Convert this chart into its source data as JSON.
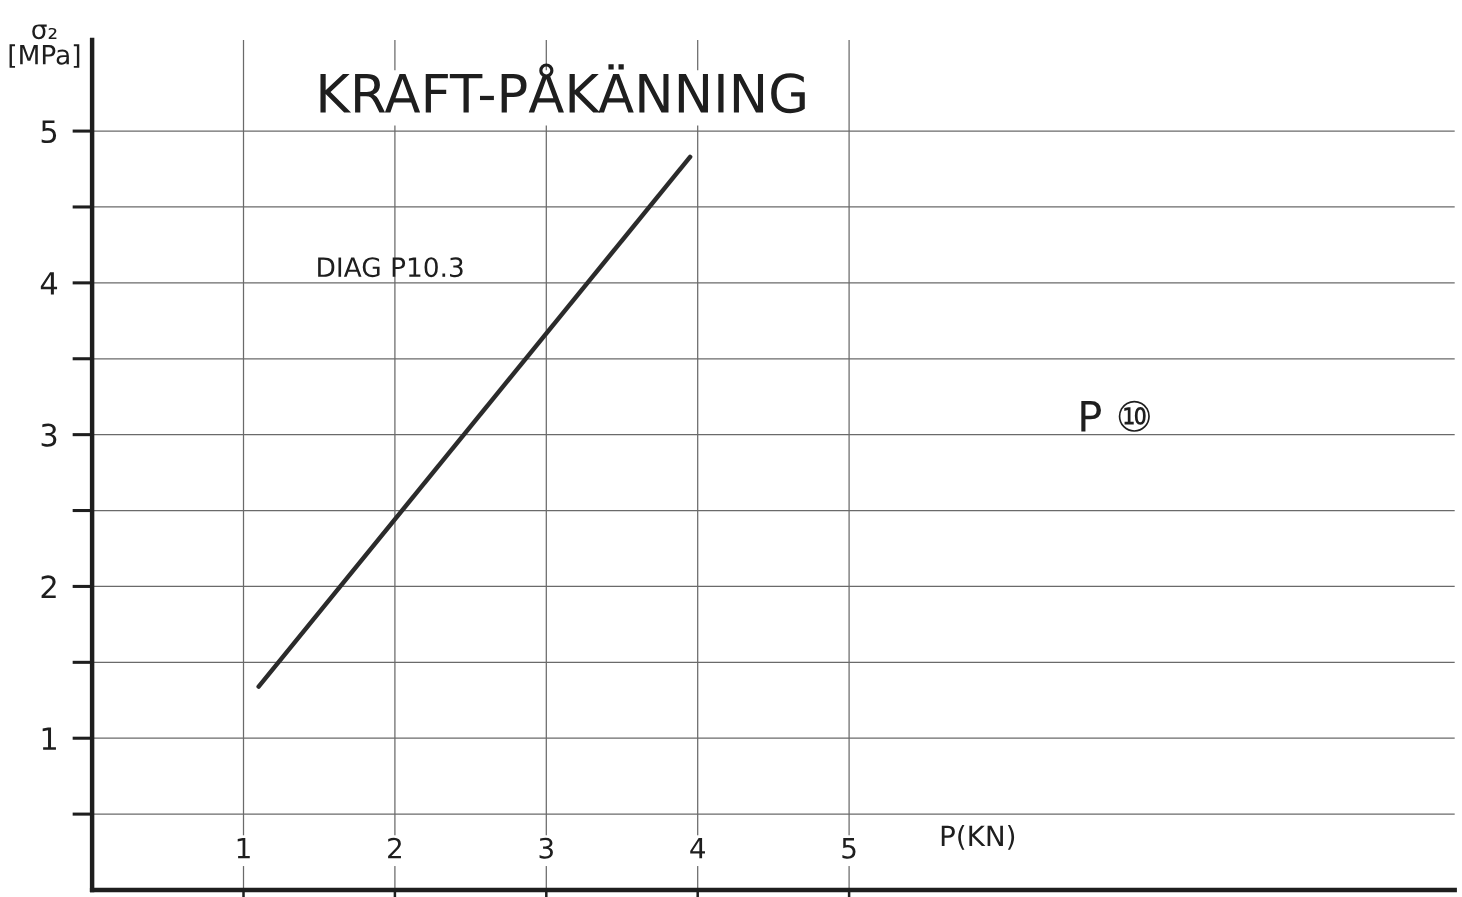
{
  "chart_data": {
    "type": "line",
    "title": "KRAFT-PÅKÄNNING",
    "xlabel": "P(KN)",
    "ylabel": "σ₂ [MPa]",
    "annotations": [
      "DIAG P10.3",
      "P ⑩"
    ],
    "series": [
      {
        "x": [
          1.1,
          3.95
        ],
        "values": [
          1.34,
          4.83
        ],
        "color": "#2b2b2b"
      }
    ],
    "xlim": [
      0,
      9
    ],
    "ylim": [
      0,
      5.6
    ],
    "xticks": [
      1,
      2,
      3,
      4,
      5
    ],
    "yticks": [
      {
        "value": 0.5,
        "label": null
      },
      1,
      {
        "value": 1.5,
        "label": null
      },
      2,
      {
        "value": 2.5,
        "label": null
      },
      3,
      {
        "value": 3.5,
        "label": null
      },
      4,
      {
        "value": 4.5,
        "label": null
      },
      5
    ],
    "grid": true
  }
}
